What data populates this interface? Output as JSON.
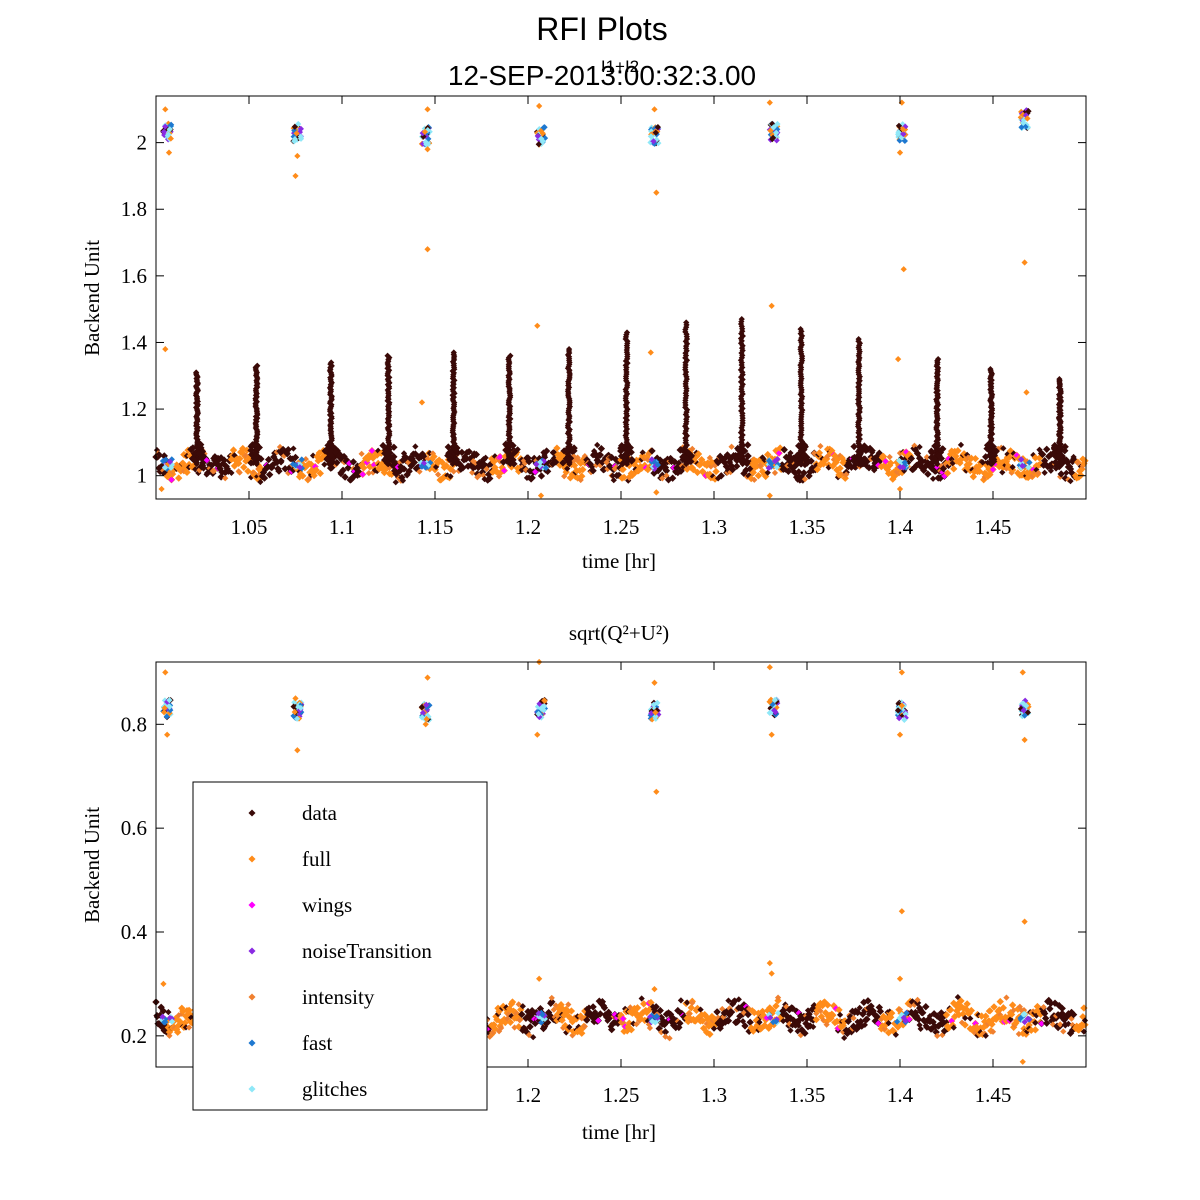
{
  "figure": {
    "title": "RFI Plots",
    "subtitle": "12-SEP-2013:00:32:3.00",
    "overlay_label": "I1+I2"
  },
  "colors": {
    "data": "#3a0a08",
    "full": "#ff8c1a",
    "wings": "#ff00ff",
    "noiseTransition": "#8a2be2",
    "intensity": "#f08030",
    "fast": "#1e78d0",
    "glitches": "#8fe8f8"
  },
  "legend": {
    "entries": [
      {
        "label": "data",
        "color_key": "data"
      },
      {
        "label": "full",
        "color_key": "full"
      },
      {
        "label": "wings",
        "color_key": "wings"
      },
      {
        "label": "noiseTransition",
        "color_key": "noiseTransition"
      },
      {
        "label": "intensity",
        "color_key": "intensity"
      },
      {
        "label": "fast",
        "color_key": "fast"
      },
      {
        "label": "glitches",
        "color_key": "glitches"
      }
    ]
  },
  "chart_data": [
    {
      "type": "scatter",
      "title": "",
      "xlabel": "time [hr]",
      "ylabel": "Backend Unit",
      "xlim": [
        1.0,
        1.5
      ],
      "ylim": [
        0.93,
        2.14
      ],
      "xticks": [
        1.05,
        1.1,
        1.15,
        1.2,
        1.25,
        1.3,
        1.35,
        1.4,
        1.45
      ],
      "xtick_labels": [
        "1.05",
        "1.1",
        "1.15",
        "1.2",
        "1.25",
        "1.3",
        "1.35",
        "1.4",
        "1.45"
      ],
      "yticks": [
        1,
        1.2,
        1.4,
        1.6,
        1.8,
        2
      ],
      "ytick_labels": [
        "1",
        "1.2",
        "1.4",
        "1.6",
        "1.8",
        "2"
      ],
      "baseline": 1.035,
      "spikes": [
        {
          "x": 1.022,
          "peak": 1.31
        },
        {
          "x": 1.054,
          "peak": 1.33
        },
        {
          "x": 1.094,
          "peak": 1.34
        },
        {
          "x": 1.125,
          "peak": 1.36
        },
        {
          "x": 1.16,
          "peak": 1.37
        },
        {
          "x": 1.19,
          "peak": 1.36
        },
        {
          "x": 1.222,
          "peak": 1.38
        },
        {
          "x": 1.253,
          "peak": 1.43
        },
        {
          "x": 1.285,
          "peak": 1.46
        },
        {
          "x": 1.315,
          "peak": 1.47
        },
        {
          "x": 1.347,
          "peak": 1.44
        },
        {
          "x": 1.378,
          "peak": 1.41
        },
        {
          "x": 1.42,
          "peak": 1.35
        },
        {
          "x": 1.449,
          "peak": 1.32
        },
        {
          "x": 1.486,
          "peak": 1.29
        }
      ],
      "noise_clusters": [
        {
          "x": 1.006,
          "y": 2.03
        },
        {
          "x": 1.076,
          "y": 2.03
        },
        {
          "x": 1.145,
          "y": 2.02
        },
        {
          "x": 1.207,
          "y": 2.02
        },
        {
          "x": 1.268,
          "y": 2.02
        },
        {
          "x": 1.332,
          "y": 2.03
        },
        {
          "x": 1.401,
          "y": 2.03
        },
        {
          "x": 1.467,
          "y": 2.07
        }
      ],
      "outliers": [
        {
          "x": 1.005,
          "y": 2.1
        },
        {
          "x": 1.007,
          "y": 1.97
        },
        {
          "x": 1.005,
          "y": 1.38
        },
        {
          "x": 1.075,
          "y": 1.9
        },
        {
          "x": 1.076,
          "y": 1.96
        },
        {
          "x": 1.146,
          "y": 2.1
        },
        {
          "x": 1.146,
          "y": 1.98
        },
        {
          "x": 1.146,
          "y": 1.68
        },
        {
          "x": 1.143,
          "y": 1.22
        },
        {
          "x": 1.206,
          "y": 2.11
        },
        {
          "x": 1.205,
          "y": 1.45
        },
        {
          "x": 1.207,
          "y": 0.94
        },
        {
          "x": 1.268,
          "y": 2.1
        },
        {
          "x": 1.269,
          "y": 1.85
        },
        {
          "x": 1.266,
          "y": 1.37
        },
        {
          "x": 1.269,
          "y": 0.95
        },
        {
          "x": 1.33,
          "y": 2.12
        },
        {
          "x": 1.331,
          "y": 1.51
        },
        {
          "x": 1.33,
          "y": 0.94
        },
        {
          "x": 1.401,
          "y": 2.12
        },
        {
          "x": 1.4,
          "y": 1.97
        },
        {
          "x": 1.402,
          "y": 1.62
        },
        {
          "x": 1.399,
          "y": 1.35
        },
        {
          "x": 1.4,
          "y": 0.96
        },
        {
          "x": 1.467,
          "y": 1.64
        },
        {
          "x": 1.468,
          "y": 1.25
        },
        {
          "x": 1.003,
          "y": 0.96
        }
      ]
    },
    {
      "type": "scatter",
      "title": "sqrt(Q²+U²)",
      "xlabel": "time [hr]",
      "ylabel": "Backend Unit",
      "xlim": [
        1.0,
        1.5
      ],
      "ylim": [
        0.14,
        0.92
      ],
      "xticks": [
        1.2,
        1.25,
        1.3,
        1.35,
        1.4,
        1.45
      ],
      "xtick_labels": [
        "1.2",
        "1.25",
        "1.3",
        "1.35",
        "1.4",
        "1.45"
      ],
      "yticks": [
        0.2,
        0.4,
        0.6,
        0.8
      ],
      "ytick_labels": [
        "0.2",
        "0.4",
        "0.6",
        "0.8"
      ],
      "baseline": 0.235,
      "noise_clusters": [
        {
          "x": 1.006,
          "y": 0.83
        },
        {
          "x": 1.076,
          "y": 0.825
        },
        {
          "x": 1.145,
          "y": 0.825
        },
        {
          "x": 1.207,
          "y": 0.83
        },
        {
          "x": 1.268,
          "y": 0.825
        },
        {
          "x": 1.332,
          "y": 0.83
        },
        {
          "x": 1.401,
          "y": 0.825
        },
        {
          "x": 1.467,
          "y": 0.83
        }
      ],
      "outliers": [
        {
          "x": 1.005,
          "y": 0.9
        },
        {
          "x": 1.006,
          "y": 0.78
        },
        {
          "x": 1.004,
          "y": 0.3
        },
        {
          "x": 1.076,
          "y": 0.75
        },
        {
          "x": 1.075,
          "y": 0.85
        },
        {
          "x": 1.146,
          "y": 0.89
        },
        {
          "x": 1.145,
          "y": 0.8
        },
        {
          "x": 1.206,
          "y": 0.92
        },
        {
          "x": 1.205,
          "y": 0.78
        },
        {
          "x": 1.206,
          "y": 0.31
        },
        {
          "x": 1.268,
          "y": 0.88
        },
        {
          "x": 1.269,
          "y": 0.67
        },
        {
          "x": 1.268,
          "y": 0.29
        },
        {
          "x": 1.33,
          "y": 0.91
        },
        {
          "x": 1.331,
          "y": 0.78
        },
        {
          "x": 1.33,
          "y": 0.34
        },
        {
          "x": 1.331,
          "y": 0.32
        },
        {
          "x": 1.401,
          "y": 0.9
        },
        {
          "x": 1.4,
          "y": 0.78
        },
        {
          "x": 1.401,
          "y": 0.44
        },
        {
          "x": 1.4,
          "y": 0.31
        },
        {
          "x": 1.466,
          "y": 0.9
        },
        {
          "x": 1.467,
          "y": 0.77
        },
        {
          "x": 1.467,
          "y": 0.42
        },
        {
          "x": 1.466,
          "y": 0.15
        }
      ]
    }
  ]
}
